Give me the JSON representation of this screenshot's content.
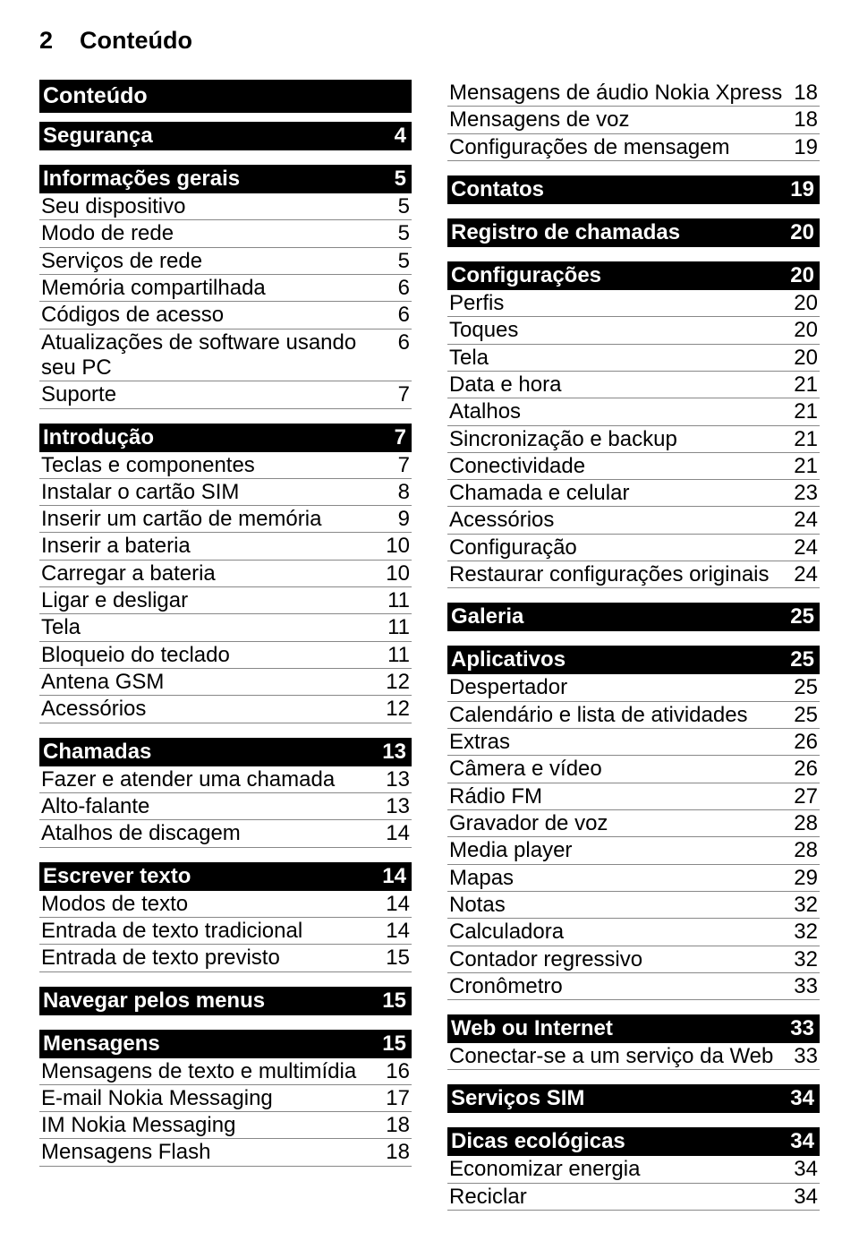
{
  "header": {
    "pageNumber": "2",
    "title": "Conteúdo"
  },
  "sections": [
    {
      "type": "title",
      "label": "Conteúdo"
    },
    {
      "type": "header",
      "label": "Segurança",
      "page": "4"
    },
    {
      "type": "header",
      "label": "Informações gerais",
      "page": "5"
    },
    {
      "type": "row",
      "label": "Seu dispositivo",
      "page": "5"
    },
    {
      "type": "row",
      "label": "Modo de rede",
      "page": "5"
    },
    {
      "type": "row",
      "label": "Serviços de rede",
      "page": "5"
    },
    {
      "type": "row",
      "label": "Memória compartilhada",
      "page": "6"
    },
    {
      "type": "row",
      "label": "Códigos de acesso",
      "page": "6"
    },
    {
      "type": "row",
      "label": "Atualizações de software usando seu PC",
      "page": "6"
    },
    {
      "type": "row",
      "label": "Suporte",
      "page": "7"
    },
    {
      "type": "header",
      "label": "Introdução",
      "page": "7"
    },
    {
      "type": "row",
      "label": "Teclas e componentes",
      "page": "7"
    },
    {
      "type": "row",
      "label": "Instalar o cartão SIM",
      "page": "8"
    },
    {
      "type": "row",
      "label": "Inserir um cartão de memória",
      "page": "9"
    },
    {
      "type": "row",
      "label": "Inserir a bateria",
      "page": "10"
    },
    {
      "type": "row",
      "label": "Carregar a bateria",
      "page": "10"
    },
    {
      "type": "row",
      "label": "Ligar e desligar",
      "page": "11"
    },
    {
      "type": "row",
      "label": "Tela",
      "page": "11"
    },
    {
      "type": "row",
      "label": "Bloqueio do teclado",
      "page": "11"
    },
    {
      "type": "row",
      "label": "Antena GSM",
      "page": "12"
    },
    {
      "type": "row",
      "label": "Acessórios",
      "page": "12"
    },
    {
      "type": "header",
      "label": "Chamadas",
      "page": "13"
    },
    {
      "type": "row",
      "label": "Fazer e atender uma chamada",
      "page": "13"
    },
    {
      "type": "row",
      "label": "Alto-falante",
      "page": "13"
    },
    {
      "type": "row",
      "label": "Atalhos de discagem",
      "page": "14"
    },
    {
      "type": "header",
      "label": "Escrever texto",
      "page": "14"
    },
    {
      "type": "row",
      "label": "Modos de texto",
      "page": "14"
    },
    {
      "type": "row",
      "label": "Entrada de texto tradicional",
      "page": "14"
    },
    {
      "type": "row",
      "label": "Entrada de texto previsto",
      "page": "15"
    },
    {
      "type": "header",
      "label": "Navegar pelos menus",
      "page": "15"
    },
    {
      "type": "header",
      "label": "Mensagens",
      "page": "15"
    },
    {
      "type": "row",
      "label": "Mensagens de texto e multimídia",
      "page": "16"
    },
    {
      "type": "row",
      "label": "E-mail Nokia Messaging",
      "page": "17"
    },
    {
      "type": "row",
      "label": "IM Nokia Messaging",
      "page": "18"
    },
    {
      "type": "row",
      "label": "Mensagens Flash",
      "page": "18"
    }
  ],
  "sectionsRight": [
    {
      "type": "row",
      "label": "Mensagens de áudio Nokia Xpress",
      "page": "18"
    },
    {
      "type": "row",
      "label": "Mensagens de voz",
      "page": "18"
    },
    {
      "type": "row",
      "label": "Configurações de mensagem",
      "page": "19"
    },
    {
      "type": "header",
      "label": "Contatos",
      "page": "19"
    },
    {
      "type": "header",
      "label": "Registro de chamadas",
      "page": "20"
    },
    {
      "type": "header",
      "label": "Configurações",
      "page": "20"
    },
    {
      "type": "row",
      "label": "Perfis",
      "page": "20"
    },
    {
      "type": "row",
      "label": "Toques",
      "page": "20"
    },
    {
      "type": "row",
      "label": "Tela",
      "page": "20"
    },
    {
      "type": "row",
      "label": "Data e hora",
      "page": "21"
    },
    {
      "type": "row",
      "label": "Atalhos",
      "page": "21"
    },
    {
      "type": "row",
      "label": "Sincronização e backup",
      "page": "21"
    },
    {
      "type": "row",
      "label": "Conectividade",
      "page": "21"
    },
    {
      "type": "row",
      "label": "Chamada e celular",
      "page": "23"
    },
    {
      "type": "row",
      "label": "Acessórios",
      "page": "24"
    },
    {
      "type": "row",
      "label": "Configuração",
      "page": "24"
    },
    {
      "type": "row",
      "label": "Restaurar configurações originais",
      "page": "24"
    },
    {
      "type": "header",
      "label": "Galeria",
      "page": "25"
    },
    {
      "type": "header",
      "label": "Aplicativos",
      "page": "25"
    },
    {
      "type": "row",
      "label": "Despertador",
      "page": "25"
    },
    {
      "type": "row",
      "label": "Calendário e lista de atividades",
      "page": "25"
    },
    {
      "type": "row",
      "label": "Extras",
      "page": "26"
    },
    {
      "type": "row",
      "label": "Câmera e vídeo",
      "page": "26"
    },
    {
      "type": "row",
      "label": "Rádio FM",
      "page": "27"
    },
    {
      "type": "row",
      "label": "Gravador de voz",
      "page": "28"
    },
    {
      "type": "row",
      "label": "Media player",
      "page": "28"
    },
    {
      "type": "row",
      "label": "Mapas",
      "page": "29"
    },
    {
      "type": "row",
      "label": "Notas",
      "page": "32"
    },
    {
      "type": "row",
      "label": "Calculadora",
      "page": "32"
    },
    {
      "type": "row",
      "label": "Contador regressivo",
      "page": "32"
    },
    {
      "type": "row",
      "label": "Cronômetro",
      "page": "33"
    },
    {
      "type": "header",
      "label": "Web ou Internet",
      "page": "33"
    },
    {
      "type": "row",
      "label": "Conectar-se a um serviço da Web",
      "page": "33"
    },
    {
      "type": "header",
      "label": "Serviços SIM",
      "page": "34"
    },
    {
      "type": "header",
      "label": "Dicas ecológicas",
      "page": "34"
    },
    {
      "type": "row",
      "label": "Economizar energia",
      "page": "34"
    },
    {
      "type": "row",
      "label": "Reciclar",
      "page": "34"
    }
  ]
}
